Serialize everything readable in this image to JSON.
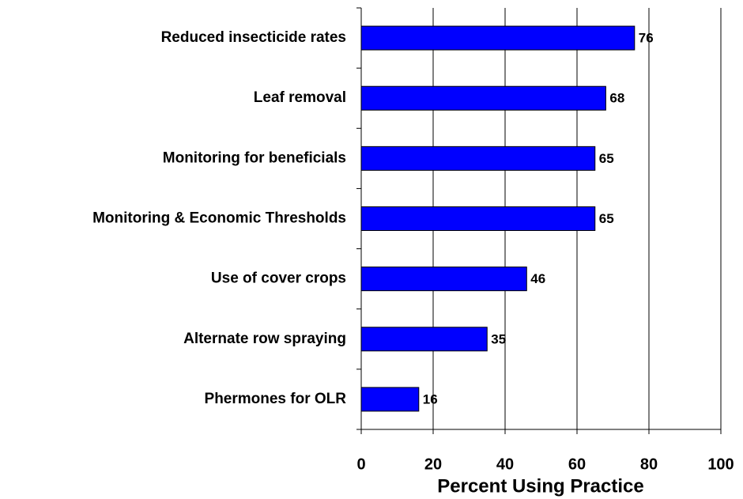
{
  "chart_data": {
    "type": "bar",
    "orientation": "horizontal",
    "categories": [
      "Reduced insecticide rates",
      "Leaf removal",
      "Monitoring for beneficials",
      "Monitoring & Economic Thresholds",
      "Use of cover crops",
      "Alternate row spraying",
      "Phermones for OLR"
    ],
    "values": [
      76,
      68,
      65,
      65,
      46,
      35,
      16
    ],
    "color": "#0000ff",
    "xlabel": "Percent Using Practice",
    "xlim": [
      0,
      100
    ],
    "xticks": [
      0,
      20,
      40,
      60,
      80,
      100
    ],
    "grid": true
  }
}
